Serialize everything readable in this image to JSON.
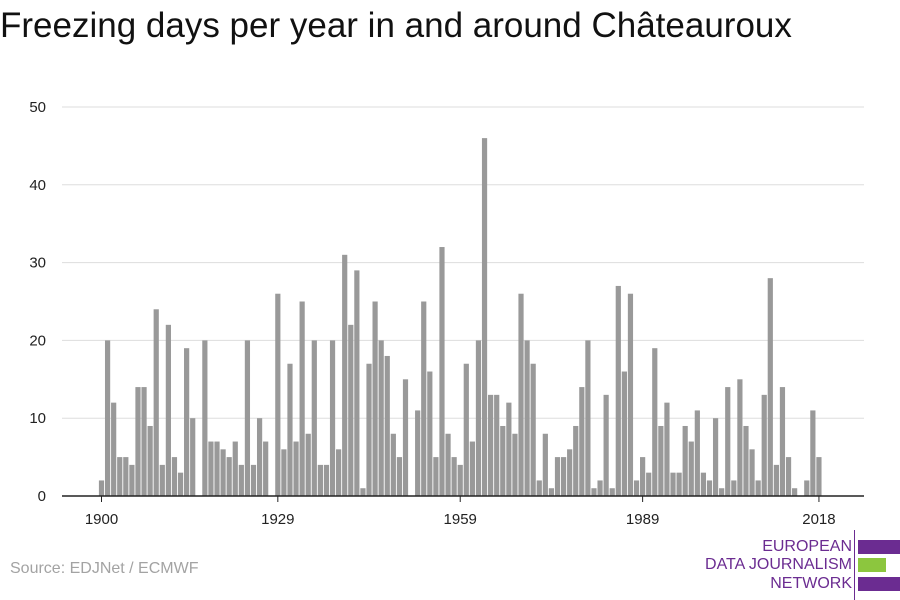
{
  "title": "Freezing days per year in and around Châteauroux",
  "source": "Source: EDJNet / ECMWF",
  "logo": {
    "line1": "EUROPEAN",
    "line2": "DATA JOURNALISM",
    "line3": "NETWORK",
    "purple": "#6b2c91",
    "green": "#8cc63e"
  },
  "colors": {
    "bar": "#999999",
    "grid": "#dddddd",
    "axis": "#222222"
  },
  "chart_data": {
    "type": "bar",
    "x_start": 1900,
    "x_end": 2018,
    "x_ticks": [
      1900,
      1929,
      1959,
      1989,
      2018
    ],
    "x_tick_labels": [
      "1900",
      "1929",
      "1959",
      "1989",
      "2018"
    ],
    "y_ticks": [
      0,
      10,
      20,
      30,
      40,
      50
    ],
    "y_tick_labels": [
      "0",
      "10",
      "20",
      "30",
      "40",
      "50"
    ],
    "ylim": [
      0,
      50
    ],
    "grid": true,
    "legend": "none",
    "years": [
      1900,
      1901,
      1902,
      1903,
      1904,
      1905,
      1906,
      1907,
      1908,
      1909,
      1910,
      1911,
      1912,
      1913,
      1914,
      1915,
      1916,
      1917,
      1918,
      1919,
      1920,
      1921,
      1922,
      1923,
      1924,
      1925,
      1926,
      1927,
      1928,
      1929,
      1930,
      1931,
      1932,
      1933,
      1934,
      1935,
      1936,
      1937,
      1938,
      1939,
      1940,
      1941,
      1942,
      1943,
      1944,
      1945,
      1946,
      1947,
      1948,
      1949,
      1950,
      1951,
      1952,
      1953,
      1954,
      1955,
      1956,
      1957,
      1958,
      1959,
      1960,
      1961,
      1962,
      1963,
      1964,
      1965,
      1966,
      1967,
      1968,
      1969,
      1970,
      1971,
      1972,
      1973,
      1974,
      1975,
      1976,
      1977,
      1978,
      1979,
      1980,
      1981,
      1982,
      1983,
      1984,
      1985,
      1986,
      1987,
      1988,
      1989,
      1990,
      1991,
      1992,
      1993,
      1994,
      1995,
      1996,
      1997,
      1998,
      1999,
      2000,
      2001,
      2002,
      2003,
      2004,
      2005,
      2006,
      2007,
      2008,
      2009,
      2010,
      2011,
      2012,
      2013,
      2014,
      2015,
      2016,
      2017,
      2018
    ],
    "values": [
      2,
      20,
      12,
      5,
      5,
      4,
      14,
      14,
      9,
      24,
      4,
      22,
      5,
      3,
      19,
      10,
      0,
      20,
      7,
      7,
      6,
      5,
      7,
      4,
      20,
      4,
      10,
      7,
      0,
      26,
      6,
      17,
      7,
      25,
      8,
      20,
      4,
      4,
      20,
      6,
      31,
      22,
      29,
      1,
      17,
      25,
      20,
      18,
      8,
      5,
      15,
      0,
      11,
      25,
      16,
      5,
      32,
      8,
      5,
      4,
      17,
      7,
      20,
      46,
      13,
      13,
      9,
      12,
      8,
      26,
      20,
      17,
      2,
      8,
      1,
      5,
      5,
      6,
      9,
      14,
      20,
      1,
      2,
      13,
      1,
      27,
      16,
      26,
      2,
      5,
      3,
      19,
      9,
      12,
      3,
      3,
      9,
      7,
      11,
      3,
      2,
      10,
      1,
      14,
      2,
      15,
      9,
      6,
      2,
      13,
      28,
      4,
      14,
      5,
      1,
      0,
      2,
      11,
      5
    ]
  }
}
